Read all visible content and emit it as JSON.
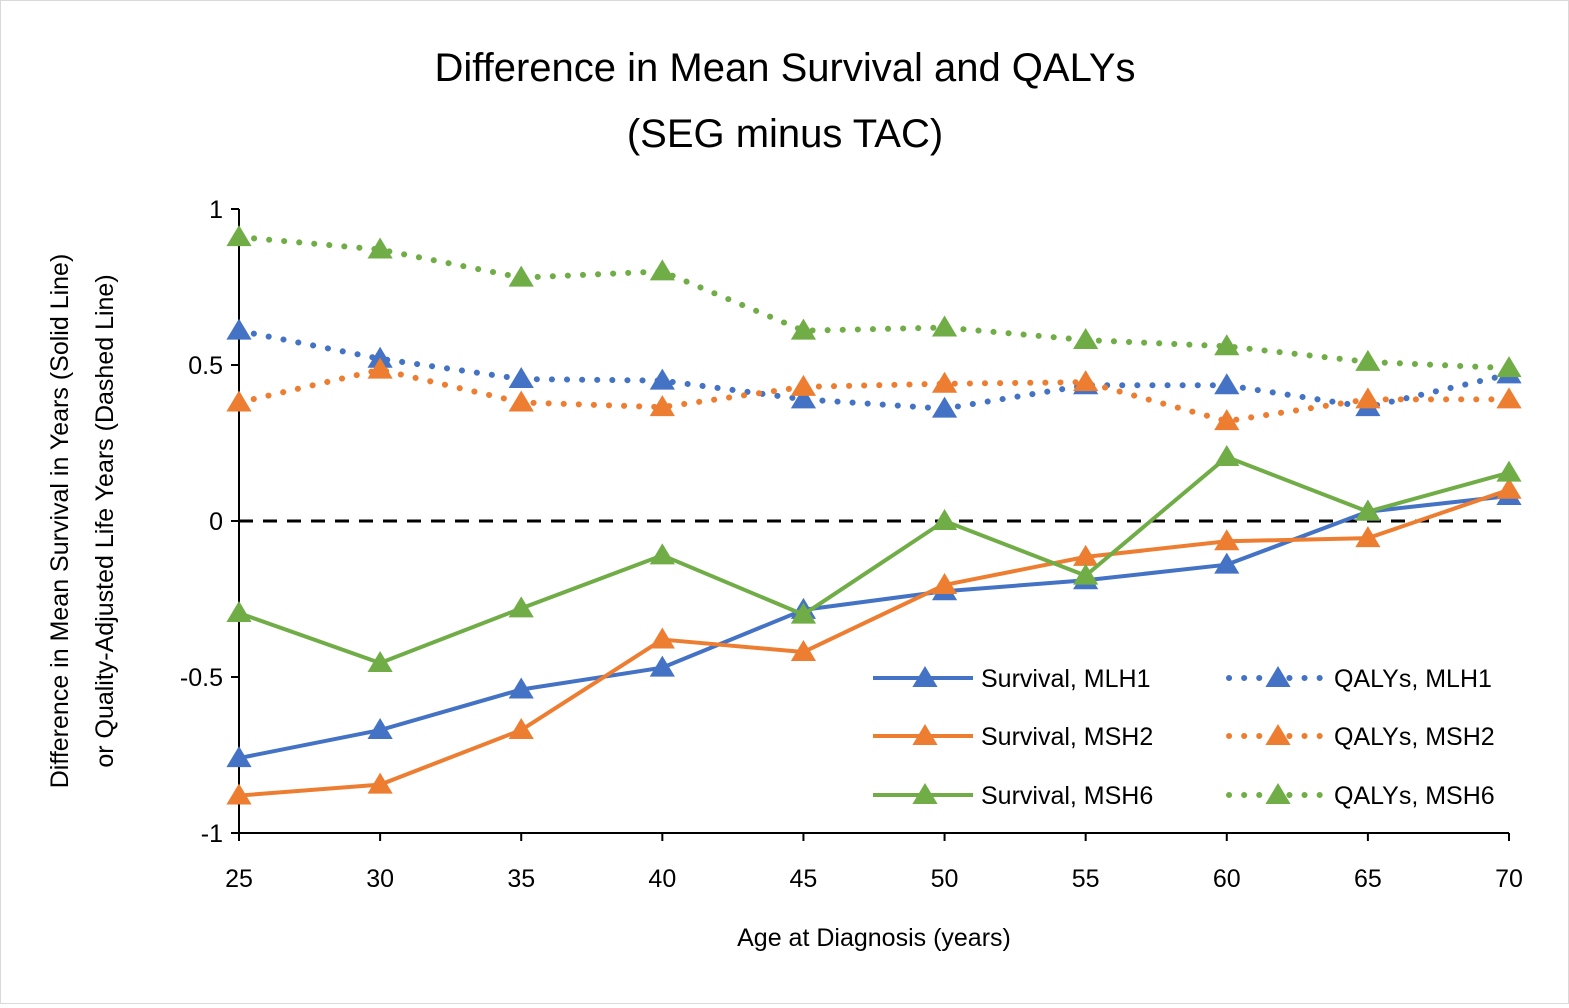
{
  "chart_data": {
    "type": "line",
    "title": "Difference in Mean Survival and QALYs",
    "subtitle": "(SEG minus TAC)",
    "xlabel": "Age at Diagnosis (years)",
    "ylabel_line1": "Difference in Mean Survival in Years (Solid Line)",
    "ylabel_line2": "or Quality-Adjusted Life Years (Dashed Line)",
    "x": [
      25,
      30,
      35,
      40,
      45,
      50,
      55,
      60,
      65,
      70
    ],
    "xlim": [
      25,
      70
    ],
    "ylim": [
      -1,
      1
    ],
    "x_ticks": [
      "25",
      "30",
      "35",
      "40",
      "45",
      "50",
      "55",
      "60",
      "65",
      "70"
    ],
    "y_ticks": [
      {
        "value": 1,
        "label": "1"
      },
      {
        "value": 0.5,
        "label": "0.5"
      },
      {
        "value": 0,
        "label": "0"
      },
      {
        "value": -0.5,
        "label": "-0.5"
      },
      {
        "value": -1,
        "label": "-1"
      }
    ],
    "reference_line": {
      "value": 0,
      "style": "dashed",
      "color": "#000000"
    },
    "grid": false,
    "legend_position": "bottom-right",
    "series": [
      {
        "name": "Survival, MLH1",
        "style": "solid",
        "marker": "triangle",
        "color": "#4472C4",
        "values": [
          -0.76,
          -0.67,
          -0.54,
          -0.47,
          -0.285,
          -0.225,
          -0.19,
          -0.14,
          0.03,
          0.08
        ]
      },
      {
        "name": "Survival, MSH2",
        "style": "solid",
        "marker": "triangle",
        "color": "#ED7D31",
        "values": [
          -0.88,
          -0.845,
          -0.67,
          -0.38,
          -0.42,
          -0.205,
          -0.115,
          -0.065,
          -0.055,
          0.1
        ]
      },
      {
        "name": "Survival, MSH6",
        "style": "solid",
        "marker": "triangle",
        "color": "#70AD47",
        "values": [
          -0.295,
          -0.455,
          -0.28,
          -0.11,
          -0.3,
          0.0,
          -0.175,
          0.205,
          0.03,
          0.155
        ]
      },
      {
        "name": "QALYs, MLH1",
        "style": "dotted",
        "marker": "triangle",
        "color": "#4472C4",
        "values": [
          0.61,
          0.52,
          0.455,
          0.45,
          0.39,
          0.36,
          0.435,
          0.435,
          0.365,
          0.47
        ]
      },
      {
        "name": "QALYs, MSH2",
        "style": "dotted",
        "marker": "triangle",
        "color": "#ED7D31",
        "values": [
          0.38,
          0.485,
          0.38,
          0.365,
          0.43,
          0.44,
          0.445,
          0.32,
          0.39,
          0.39
        ]
      },
      {
        "name": "QALYs, MSH6",
        "style": "dotted",
        "marker": "triangle",
        "color": "#70AD47",
        "values": [
          0.91,
          0.87,
          0.78,
          0.8,
          0.61,
          0.62,
          0.58,
          0.56,
          0.51,
          0.49
        ]
      }
    ]
  }
}
